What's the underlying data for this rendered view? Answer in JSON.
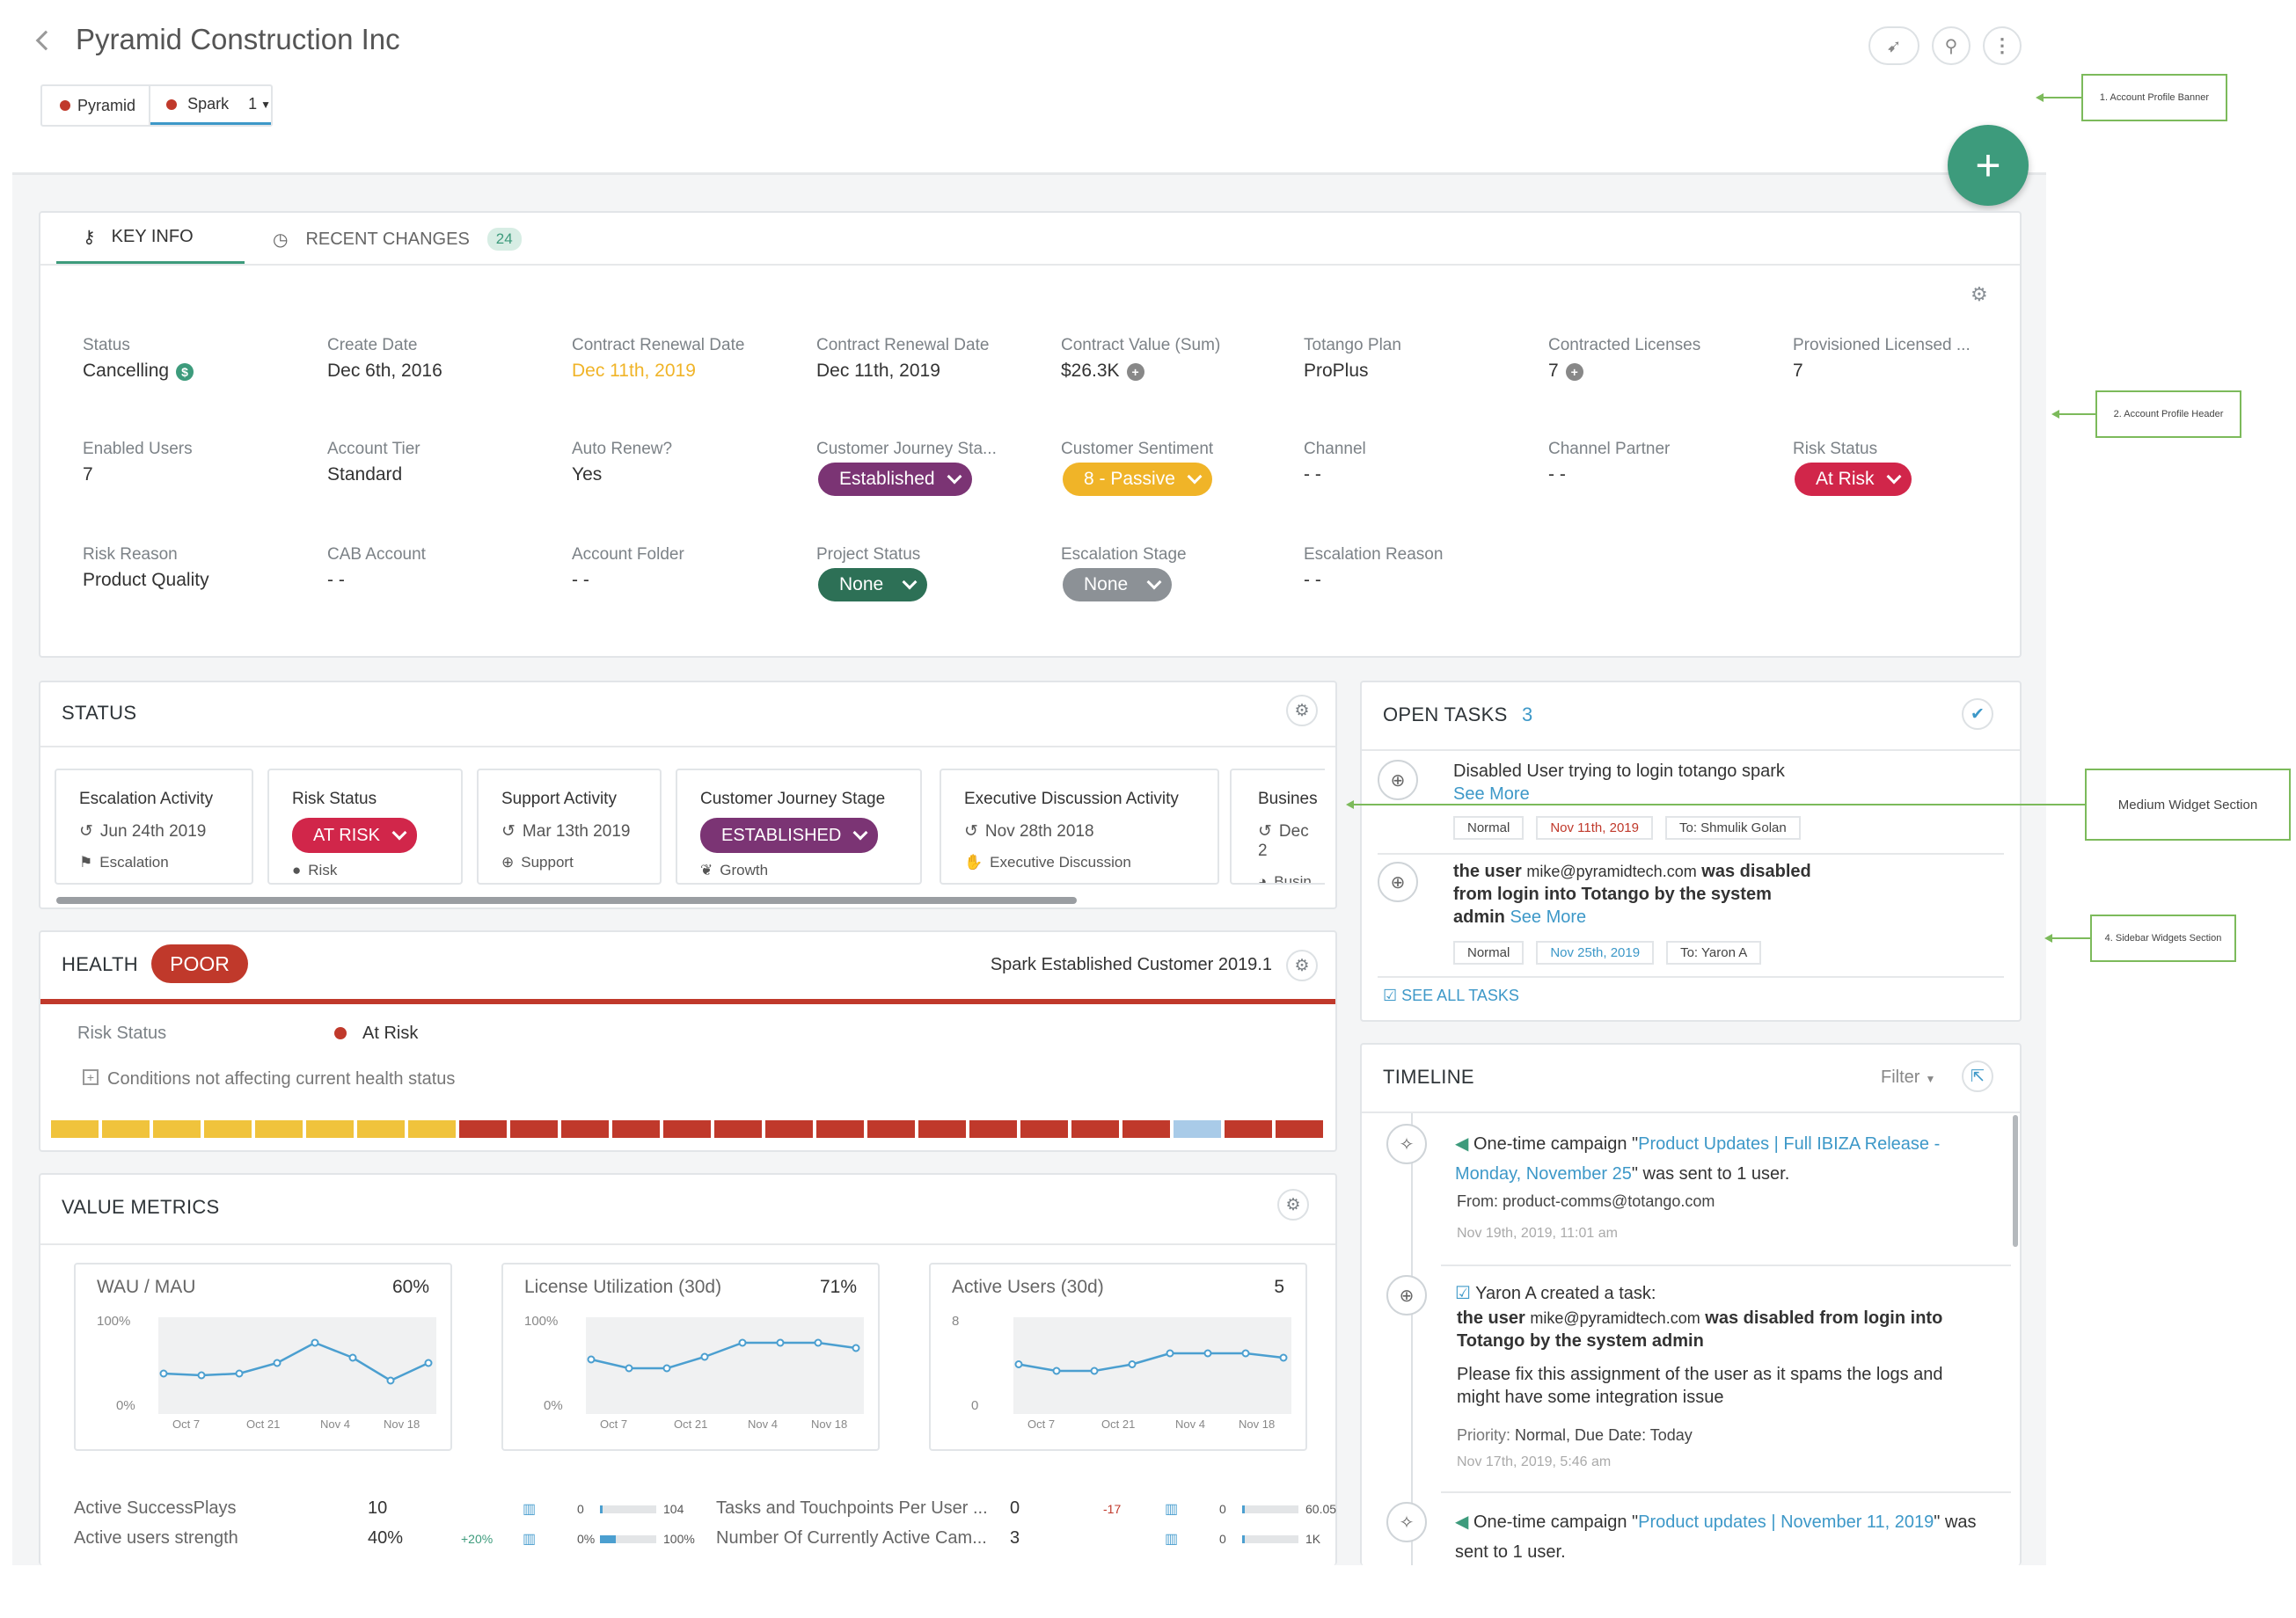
{
  "account": {
    "title": "Pyramid Construction Inc"
  },
  "breadcrumbs": [
    {
      "label": "Pyramid",
      "color": "#c0392b"
    },
    {
      "label": "Spark",
      "color": "#c0392b",
      "count": "1"
    }
  ],
  "tabs": {
    "key_info": "KEY INFO",
    "recent_changes": "RECENT CHANGES",
    "recent_changes_count": "24"
  },
  "key_info": {
    "row1": [
      {
        "label": "Status",
        "value": "Cancelling",
        "icon": "dollar-icon"
      },
      {
        "label": "Create Date",
        "value": "Dec 6th, 2016"
      },
      {
        "label": "Contract Renewal Date",
        "value": "Dec 11th, 2019",
        "color": "#f0b428"
      },
      {
        "label": "Contract Renewal Date",
        "value": "Dec 11th, 2019"
      },
      {
        "label": "Contract Value (Sum)",
        "value": "$26.3K",
        "icon": "plus-circle-icon"
      },
      {
        "label": "Totango Plan",
        "value": "ProPlus"
      },
      {
        "label": "Contracted Licenses",
        "value": "7",
        "icon": "plus-circle-icon"
      },
      {
        "label": "Provisioned Licensed ...",
        "value": "7"
      }
    ],
    "row2": [
      {
        "label": "Enabled Users",
        "value": "7"
      },
      {
        "label": "Account Tier",
        "value": "Standard"
      },
      {
        "label": "Auto Renew?",
        "value": "Yes"
      },
      {
        "label": "Customer Journey Sta...",
        "pill": "Established",
        "color": "#7b3474"
      },
      {
        "label": "Customer Sentiment",
        "pill": "8 - Passive",
        "color": "#f0b428"
      },
      {
        "label": "Channel",
        "value": "- -"
      },
      {
        "label": "Channel Partner",
        "value": "- -"
      },
      {
        "label": "Risk Status",
        "pill": "At Risk",
        "color": "#d1264a"
      }
    ],
    "row3": [
      {
        "label": "Risk Reason",
        "value": "Product Quality"
      },
      {
        "label": "CAB Account",
        "value": "- -"
      },
      {
        "label": "Account Folder",
        "value": "- -"
      },
      {
        "label": "Project Status",
        "pill": "None",
        "color": "#2d7056"
      },
      {
        "label": "Escalation Stage",
        "pill": "None",
        "color": "#8c9196"
      },
      {
        "label": "Escalation Reason",
        "value": "- -"
      }
    ]
  },
  "status": {
    "title": "STATUS",
    "tiles": [
      {
        "title": "Escalation Activity",
        "date": "Jun 24th 2019",
        "sub": "Escalation"
      },
      {
        "title": "Risk Status",
        "pill": "AT RISK",
        "color": "#d1264a",
        "sub": "Risk"
      },
      {
        "title": "Support Activity",
        "date": "Mar 13th 2019",
        "sub": "Support"
      },
      {
        "title": "Customer Journey Stage",
        "pill": "ESTABLISHED",
        "color": "#7b3474",
        "sub": "Growth"
      },
      {
        "title": "Executive Discussion Activity",
        "date": "Nov 28th 2018",
        "sub": "Executive Discussion"
      },
      {
        "title": "Busines",
        "date": "Dec 2",
        "sub": "Busin"
      }
    ]
  },
  "health": {
    "title": "HEALTH",
    "badge": "POOR",
    "profile": "Spark Established Customer 2019.1",
    "risk_label": "Risk Status",
    "risk_value": "At Risk",
    "conditions": "Conditions not affecting current health status",
    "history": [
      "y",
      "y",
      "y",
      "y",
      "y",
      "y",
      "y",
      "y",
      "r",
      "r",
      "r",
      "r",
      "r",
      "r",
      "r",
      "r",
      "r",
      "r",
      "r",
      "r",
      "r",
      "r",
      "b",
      "r",
      "r"
    ]
  },
  "value_metrics": {
    "title": "VALUE METRICS",
    "charts": [
      {
        "title": "WAU / MAU",
        "value": "60%",
        "ymax": "100%",
        "ymin": "0%",
        "ticks": [
          "Oct 7",
          "Oct 21",
          "Nov 4",
          "Nov 18"
        ]
      },
      {
        "title": "License Utilization (30d)",
        "value": "71%",
        "ymax": "100%",
        "ymin": "0%",
        "ticks": [
          "Oct 7",
          "Oct 21",
          "Nov 4",
          "Nov 18"
        ]
      },
      {
        "title": "Active Users (30d)",
        "value": "5",
        "ymax": "8",
        "ymin": "0",
        "ticks": [
          "Oct 7",
          "Oct 21",
          "Nov 4",
          "Nov 18"
        ]
      }
    ],
    "rows_left": [
      {
        "label": "Active SuccessPlays",
        "value": "10",
        "change": "",
        "min": "0",
        "max": "104"
      },
      {
        "label": "Active users strength",
        "value": "40%",
        "change": "+20%",
        "min": "0%",
        "max": "100%"
      }
    ],
    "rows_right": [
      {
        "label": "Tasks and Touchpoints Per User ...",
        "value": "0",
        "change": "-17",
        "min": "0",
        "max": "60.05"
      },
      {
        "label": "Number Of Currently Active Cam...",
        "value": "3",
        "change": "",
        "min": "0",
        "max": "1K"
      }
    ]
  },
  "open_tasks": {
    "title": "OPEN TASKS",
    "count": "3",
    "see_all": "SEE ALL TASKS",
    "items": [
      {
        "title": "Disabled User trying to login totango spark",
        "see_more": "See More",
        "priority": "Normal",
        "date": "Nov 11th, 2019",
        "to": "To: Shmulik Golan"
      },
      {
        "prefix": "the user",
        "email": "mike@pyramidtech.com",
        "rest": "was disabled from login into Totango by the system admin",
        "see_more": "See More",
        "priority": "Normal",
        "date": "Nov 25th, 2019",
        "to": "To: Yaron A"
      }
    ]
  },
  "timeline": {
    "title": "TIMELINE",
    "filter": "Filter",
    "items": [
      {
        "pre": "One-time campaign \"",
        "link": "Product Updates | Full IBIZA Release - Monday, November 25",
        "post": "\" was sent to 1 user.",
        "from": "From: product-comms@totango.com",
        "time": "Nov 19th, 2019, 11:01 am"
      },
      {
        "head": "Yaron A created a task:",
        "prefix": "the user",
        "email": "mike@pyramidtech.com",
        "rest": "was disabled from login into Totango by the system admin",
        "body": "Please fix this assignment of the user as it spams the logs and might have some integration issue",
        "meta_label": "Priority:",
        "meta": "Normal, Due Date: Today",
        "time": "Nov 17th, 2019, 5:46 am"
      },
      {
        "pre": "One-time campaign \"",
        "link": "Product updates | November 11, 2019",
        "post": "\" was sent to 1 user."
      }
    ]
  },
  "annotations": {
    "a1": "1. Account Profile Banner",
    "a2": "2. Account Profile Header",
    "a3": "Medium Widget Section",
    "a4": "4. Sidebar Widgets Section"
  }
}
